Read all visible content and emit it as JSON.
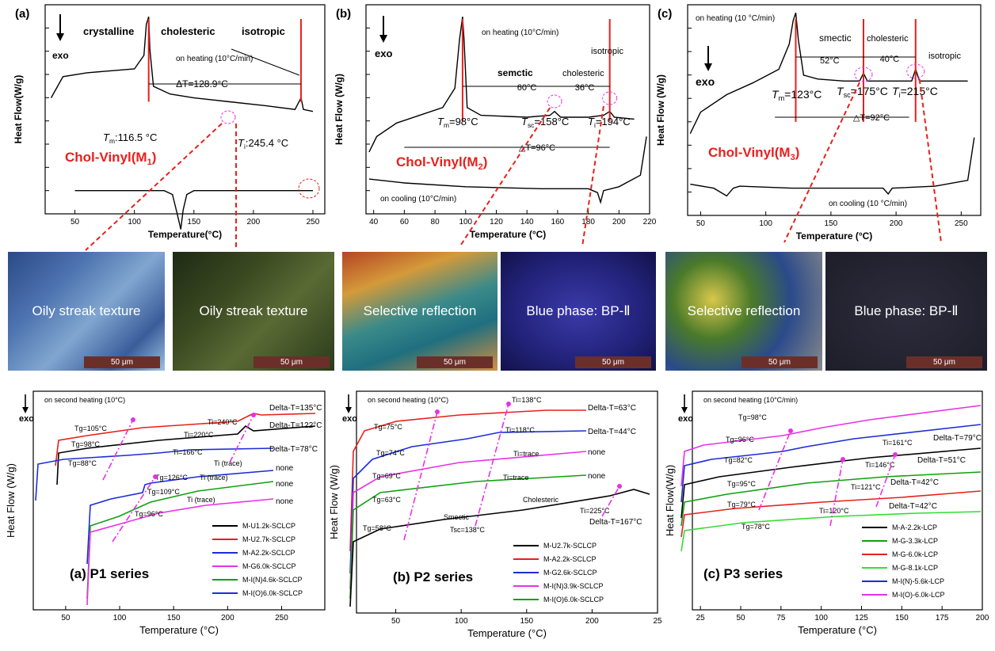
{
  "colors": {
    "red": "#e8201c",
    "magenta": "#e830e8",
    "black": "#000000",
    "blue": "#1c2cd8",
    "green": "#0fa010",
    "ltgreen": "#33dd33"
  },
  "top": [
    {
      "id": "a",
      "panel_label": "(a)",
      "ylabel": "Heat Flow(W/g)",
      "xlabel": "Temperature(°C)",
      "xlim": [
        25,
        260
      ],
      "xticks": [
        50,
        100,
        150,
        200,
        250
      ],
      "heat_title": "on heating (10°C/min)",
      "exo": "exo",
      "phases": [
        "crystalline",
        "cholesteric",
        "isotropic"
      ],
      "tm": "T",
      "tm_sub": "m",
      "tm_text": ":116.5 °C",
      "ti": "T",
      "ti_sub": "i",
      "ti_text": ":245.4 °C",
      "dt": "ΔT=128.9°C",
      "compound": "Chol-Vinyl(M",
      "compound_sub": "1",
      "compound_end": ")",
      "marks": [
        112,
        240
      ],
      "heating": [
        [
          30,
          40
        ],
        [
          40,
          29
        ],
        [
          60,
          27
        ],
        [
          80,
          26
        ],
        [
          100,
          25
        ],
        [
          108,
          18
        ],
        [
          110,
          2
        ],
        [
          112,
          -2
        ],
        [
          113,
          15
        ],
        [
          116,
          34
        ],
        [
          130,
          38
        ],
        [
          150,
          40
        ],
        [
          180,
          42
        ],
        [
          210,
          44
        ],
        [
          235,
          46
        ],
        [
          240,
          40
        ],
        [
          242,
          46
        ],
        [
          250,
          47
        ]
      ],
      "cooling": [
        [
          50,
          88
        ],
        [
          100,
          88
        ],
        [
          125,
          88
        ],
        [
          132,
          90
        ],
        [
          136,
          100
        ],
        [
          139,
          108
        ],
        [
          141,
          98
        ],
        [
          144,
          90
        ],
        [
          150,
          88
        ],
        [
          200,
          88
        ],
        [
          250,
          88
        ]
      ]
    },
    {
      "id": "b",
      "panel_label": "(b)",
      "ylabel": "Heat Flow (W/g)",
      "xlabel": "Temperature (°C)",
      "xlim": [
        35,
        220
      ],
      "xticks": [
        40,
        60,
        80,
        100,
        120,
        140,
        160,
        180,
        200,
        220
      ],
      "heat_title": "on heating (10°C/min)",
      "cool_title": "on cooling (10°C/min)",
      "exo": "exo",
      "phases": [
        "semctic",
        "cholesteric",
        "isotropic"
      ],
      "gaps": [
        "60°C",
        "36°C"
      ],
      "tm": "T",
      "tm_sub": "m",
      "tm_text": "=98°C",
      "tsc": "T",
      "tsc_sub": "sc",
      "tsc_text": "=158°C",
      "ti": "T",
      "ti_sub": "i",
      "ti_text": "=194°C",
      "dt": "△T=96°C",
      "compound": "Chol-Vinyl(M",
      "compound_sub": "2",
      "compound_end": ")",
      "marks": [
        98,
        194
      ],
      "heating": [
        [
          37,
          68
        ],
        [
          42,
          60
        ],
        [
          55,
          53
        ],
        [
          70,
          49
        ],
        [
          85,
          45
        ],
        [
          93,
          35
        ],
        [
          96,
          10
        ],
        [
          98,
          -2
        ],
        [
          99,
          10
        ],
        [
          101,
          45
        ],
        [
          110,
          49
        ],
        [
          140,
          50
        ],
        [
          155,
          49
        ],
        [
          158,
          47
        ],
        [
          162,
          50
        ],
        [
          180,
          50
        ],
        [
          190,
          49
        ],
        [
          194,
          47
        ],
        [
          197,
          50
        ],
        [
          210,
          51
        ]
      ],
      "cooling": [
        [
          37,
          82
        ],
        [
          60,
          84
        ],
        [
          100,
          86
        ],
        [
          150,
          87
        ],
        [
          180,
          87
        ],
        [
          186,
          89
        ],
        [
          188,
          94
        ],
        [
          190,
          88
        ],
        [
          200,
          86
        ],
        [
          214,
          80
        ],
        [
          218,
          60
        ]
      ]
    },
    {
      "id": "c",
      "panel_label": "(c)",
      "ylabel": "Heat Flow (W/g)",
      "xlabel": "Temperature (°C)",
      "xlim": [
        40,
        265
      ],
      "xticks": [
        50,
        100,
        150,
        200,
        250
      ],
      "heat_title": "on heating (10 °C/min)",
      "cool_title": "on cooling (10 °C/min)",
      "exo": "exo",
      "phases": [
        "smectic",
        "cholesteric",
        "isotropic"
      ],
      "gaps": [
        "52°C",
        "40°C"
      ],
      "tm": "T",
      "tm_sub": "m",
      "tm_text": "=123°C",
      "tsc": "T",
      "tsc_sub": "sc",
      "tsc_text": "=175°C",
      "ti": "T",
      "ti_sub": "i",
      "ti_text": "=215°C",
      "dt": "△T=92°C",
      "compound": "Chol-Vinyl(M",
      "compound_sub": "3",
      "compound_end": ")",
      "marks": [
        123,
        175,
        215
      ],
      "heating": [
        [
          42,
          58
        ],
        [
          50,
          47
        ],
        [
          70,
          38
        ],
        [
          90,
          32
        ],
        [
          110,
          25
        ],
        [
          118,
          12
        ],
        [
          121,
          0
        ],
        [
          123,
          -4
        ],
        [
          125,
          10
        ],
        [
          129,
          28
        ],
        [
          140,
          30
        ],
        [
          160,
          31
        ],
        [
          172,
          31
        ],
        [
          175,
          27
        ],
        [
          178,
          31
        ],
        [
          200,
          31
        ],
        [
          212,
          31
        ],
        [
          215,
          25
        ],
        [
          218,
          31
        ],
        [
          235,
          31
        ],
        [
          255,
          31
        ]
      ],
      "cooling": [
        [
          42,
          84
        ],
        [
          60,
          86
        ],
        [
          70,
          90
        ],
        [
          75,
          86
        ],
        [
          80,
          85
        ],
        [
          120,
          86
        ],
        [
          190,
          86
        ],
        [
          194,
          89
        ],
        [
          197,
          86
        ],
        [
          230,
          85
        ],
        [
          255,
          82
        ],
        [
          260,
          60
        ]
      ]
    }
  ],
  "micrographs": [
    {
      "label": "Oily streak texture",
      "scale": "50 μm",
      "bg": "linear-gradient(135deg,#2b4a86 0%,#4d73b0 30%,#80a6d0 55%,#3a5d9a 80%,#9cc0e0 100%)"
    },
    {
      "label": "Oily streak texture",
      "scale": "50 μm",
      "bg": "linear-gradient(135deg,#1e2a14 0%,#3c4a22 35%,#5a6a34 60%,#2a3a1a 100%)"
    },
    {
      "label": "Selective reflection",
      "scale": "50 μm",
      "bg": "linear-gradient(160deg,#b64424 0%,#d49a3a 25%,#3a8a8a 50%,#1f6f80 70%,#d58f3f 100%)"
    },
    {
      "label": "Blue phase: BP-Ⅱ",
      "scale": "50 μm",
      "bg": "radial-gradient(ellipse at 50% 50%,#3a3aa8 0%,#22227a 60%,#12124a 100%)"
    },
    {
      "label": "Selective reflection",
      "scale": "50 μm",
      "bg": "radial-gradient(circle at 30% 40%,#d8c84a 0%,#4a7a2a 30%,#2a4a8a 60%,#8a8a8a 100%)"
    },
    {
      "label": "Blue phase: BP-Ⅱ",
      "scale": "50 μm",
      "bg": "radial-gradient(ellipse at 50% 50%,#2c2c3c 0%,#1e1e2a 100%)"
    }
  ],
  "bottom": [
    {
      "id": "p1",
      "label": "(a) P1 series",
      "title": "on second heating (10°C)",
      "ylabel": "Heat Flow (W/g)",
      "xlabel": "Temperature (°C)",
      "exo": "exo",
      "xlim": [
        20,
        290
      ],
      "xticks": [
        50,
        100,
        150,
        200,
        250
      ],
      "legend": [
        "M-U1.2k-SCLCP",
        "M-U2.7k-SCLCP",
        "M-A2.2k-SCLCP",
        "M-G6.0k-SCLCP",
        "M-I(N)4.6k-SCLCP",
        "M-I(O)6.0k-SCLCP"
      ],
      "legend_colors": [
        "black",
        "red",
        "blue",
        "magenta",
        "green",
        "blue"
      ],
      "right_labels": [
        "Delta-T=135°C",
        "Delta-T=122°C",
        "Delta-T=78°C",
        "none",
        "none",
        "none"
      ],
      "annotations": [
        "Tg=105°C",
        "Ti=240°C",
        "Tg=98°C",
        "Ti=220°C",
        "Tg=88°C",
        "Ti=166°C",
        "Ti (trace)",
        "Tg=126°C",
        "Tg=109°C",
        "Ti (trace)",
        "Tg=96°C",
        "Ti (trace)"
      ]
    },
    {
      "id": "p2",
      "label": "(b) P2 series",
      "title": "on second heating (10°C)",
      "ylabel": "Heat Flow (W/g)",
      "xlabel": "Temperature (°C)",
      "exo": "exo",
      "xlim": [
        20,
        250
      ],
      "xticks": [
        50,
        100,
        150,
        200,
        25
      ],
      "legend": [
        "M-U2.7k-SCLCP",
        "M-A2.2k-SCLCP",
        "M-G2.6k-SCLCP",
        "M-I(N)3.9k-SCLCP",
        "M-I(O)6.0k-SCLCP"
      ],
      "legend_colors": [
        "black",
        "red",
        "blue",
        "magenta",
        "green"
      ],
      "right_labels": [
        "Delta-T=63°C",
        "Delta-T=44°C",
        "none",
        "none",
        "Delta-T=167°C"
      ],
      "annotations": [
        "Ti=138°C",
        "Tg=75°C",
        "Ti=118°C",
        "Tg=74°C",
        "Ti=trace",
        "Tg=69°C",
        "Ti=trace",
        "Tg=63°C",
        "Cholesteric",
        "Smectic",
        "Ti=225°C",
        "Tg=58°C",
        "Tsc=138°C"
      ]
    },
    {
      "id": "p3",
      "label": "(c) P3 series",
      "title": "on second heating (10°C/min)",
      "ylabel": "Heat Flow(W/g)",
      "xlabel": "Temperature (°C)",
      "exo": "exo",
      "xlim": [
        20,
        200
      ],
      "xticks": [
        25,
        50,
        75,
        100,
        125,
        150,
        175,
        200
      ],
      "legend": [
        "M-A-2.2k-LCP",
        "M-G-3.3k-LCP",
        "M-G-6.0k-LCP",
        "M-G-8.1k-LCP",
        "M-I(N)-5.6k-LCP",
        "M-I(O)-6.0k-LCP"
      ],
      "legend_colors": [
        "black",
        "green",
        "red",
        "ltgreen",
        "blue",
        "magenta"
      ],
      "right_labels": [
        "Delta-T=79°C",
        "Delta-T=51°C",
        "Delta-T=42°C",
        "Delta-T=42°C"
      ],
      "annotations": [
        "Tg=98°C",
        "Tg=96°C",
        "Ti=161°C",
        "Tg=82°C",
        "Ti=146°C",
        "Tg=95°C",
        "Ti=121°C",
        "Tg=79°C",
        "Ti=120°C",
        "Tg=78°C"
      ]
    }
  ]
}
